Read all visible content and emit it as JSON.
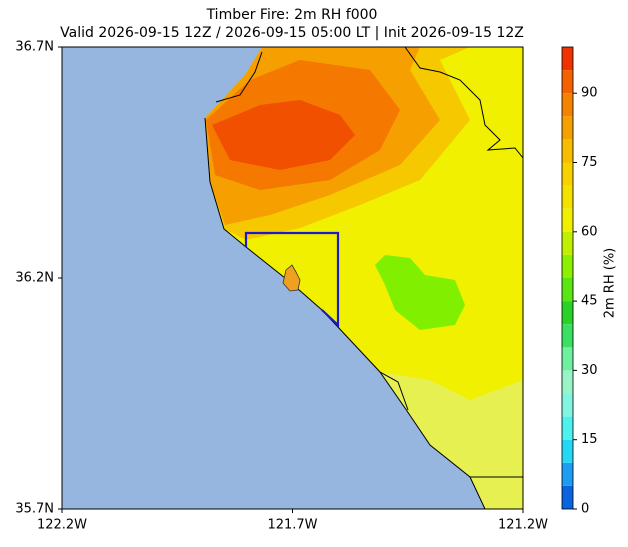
{
  "title": "Timber Fire: 2m RH f000",
  "subtitle": "Valid 2026-09-15 12Z / 2026-09-15 05:00 LT | Init 2026-09-15 12Z",
  "map": {
    "latlim": [
      35.7,
      36.7
    ],
    "lonlim": [
      -122.2,
      -121.2
    ],
    "lat_ticks": [
      {
        "value": 36.7,
        "label": "36.7N"
      },
      {
        "value": 36.2,
        "label": "36.2N"
      },
      {
        "value": 35.7,
        "label": "35.7N"
      }
    ],
    "lon_ticks": [
      {
        "value": -122.2,
        "label": "122.2W"
      },
      {
        "value": -121.7,
        "label": "121.7W"
      },
      {
        "value": -121.2,
        "label": "121.2W"
      }
    ]
  },
  "colorbar": {
    "label": "2m RH (%)",
    "lim": [
      0,
      100
    ],
    "ticks": [
      0,
      15,
      30,
      45,
      60,
      75,
      90
    ],
    "levels": [
      0,
      5,
      10,
      15,
      20,
      25,
      30,
      35,
      40,
      45,
      50,
      55,
      60,
      65,
      70,
      75,
      80,
      85,
      90,
      95,
      100
    ],
    "colors": [
      "#0a64e0",
      "#1e9cf2",
      "#22d8f5",
      "#4cf2ee",
      "#80f5e0",
      "#98f5c8",
      "#6ef0a0",
      "#3ce060",
      "#28d228",
      "#5ae614",
      "#8cf000",
      "#c0f000",
      "#f0f000",
      "#f5e100",
      "#f8d200",
      "#f5bc00",
      "#f5a000",
      "#f58200",
      "#f56000",
      "#f03200"
    ]
  }
}
